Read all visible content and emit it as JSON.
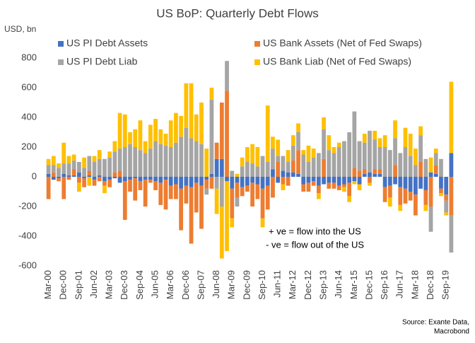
{
  "chart_data": {
    "type": "stacked_bar",
    "title": "US BoP: Quarterly Debt Flows",
    "y_label": "USD, bn",
    "annotations": [
      "+ ve = flow into the US",
      "- ve = flow out of the US"
    ],
    "source": [
      "Source: Exante Data,",
      "Macrobond"
    ],
    "categories": [
      "Mar-00",
      null,
      null,
      "Dec-00",
      null,
      null,
      "Sep-01",
      null,
      null,
      "Jun-02",
      null,
      null,
      "Mar-03",
      null,
      null,
      "Dec-03",
      null,
      null,
      "Sep-04",
      null,
      null,
      "Jun-05",
      null,
      null,
      "Mar-06",
      null,
      null,
      "Dec-06",
      null,
      null,
      "Sep-07",
      null,
      null,
      "Jun-08",
      null,
      null,
      "Mar-09",
      null,
      null,
      "Dec-09",
      null,
      null,
      "Sep-10",
      null,
      null,
      "Jun-11",
      null,
      null,
      "Mar-12",
      null,
      null,
      "Dec-12",
      null,
      null,
      "Sep-13",
      null,
      null,
      "Jun-14",
      null,
      null,
      "Mar-15",
      null,
      null,
      "Dec-15",
      null,
      null,
      "Sep-16",
      null,
      null,
      "Jun-17",
      null,
      null,
      "Mar-18",
      null,
      null,
      "Dec-18",
      null,
      null,
      "Sep-19",
      null
    ],
    "series": [
      {
        "name": "US PI Debt Assets",
        "color": "#4472c4",
        "values": [
          20,
          -20,
          -10,
          20,
          10,
          10,
          30,
          -10,
          10,
          -20,
          10,
          -30,
          -20,
          -10,
          -40,
          -30,
          -20,
          -10,
          -30,
          -20,
          -20,
          -30,
          -40,
          -20,
          -60,
          -50,
          -80,
          -60,
          -70,
          -40,
          -60,
          -20,
          20,
          120,
          120,
          -30,
          -80,
          -40,
          -70,
          -60,
          -40,
          -50,
          -80,
          -60,
          50,
          -40,
          40,
          30,
          30,
          20,
          -50,
          -40,
          -30,
          -60,
          -50,
          -40,
          -40,
          -60,
          -50,
          -40,
          -30,
          -50,
          20,
          30,
          20,
          20,
          -70,
          -60,
          -50,
          -70,
          -80,
          -100,
          -120,
          -80,
          -90,
          30,
          20,
          -80,
          -120,
          160
        ]
      },
      {
        "name": "US Bank Assets (Net of Fed Swaps)",
        "color": "#ed7d31",
        "values": [
          -150,
          30,
          -20,
          -150,
          -20,
          40,
          -40,
          -60,
          30,
          -40,
          -30,
          -30,
          -50,
          30,
          40,
          -260,
          -80,
          -150,
          -60,
          -180,
          -20,
          -60,
          -150,
          -200,
          -90,
          -100,
          -280,
          -120,
          -380,
          -200,
          -290,
          -60,
          -80,
          110,
          380,
          580,
          -200,
          -100,
          -60,
          -40,
          -160,
          -100,
          -200,
          -160,
          -140,
          100,
          -50,
          -60,
          80,
          160,
          -50,
          -60,
          -30,
          -50,
          120,
          -40,
          -40,
          -30,
          -20,
          -90,
          60,
          40,
          30,
          -40,
          30,
          30,
          -100,
          -80,
          80,
          -120,
          -100,
          -60,
          -140,
          100,
          -100,
          -200,
          60,
          -30,
          -40,
          -260
        ]
      },
      {
        "name": "US PI Debt Liab",
        "color": "#a5a5a5",
        "values": [
          60,
          50,
          60,
          70,
          80,
          60,
          70,
          60,
          100,
          100,
          110,
          120,
          130,
          140,
          150,
          200,
          220,
          200,
          180,
          160,
          190,
          240,
          220,
          210,
          200,
          230,
          270,
          330,
          260,
          240,
          220,
          -40,
          500,
          -80,
          -200,
          200,
          40,
          -60,
          70,
          100,
          90,
          70,
          140,
          100,
          140,
          40,
          100,
          70,
          100,
          120,
          150,
          100,
          130,
          160,
          200,
          180,
          160,
          200,
          240,
          300,
          380,
          200,
          180,
          280,
          200,
          150,
          200,
          180,
          180,
          160,
          200,
          140,
          80,
          180,
          120,
          -170,
          80,
          120,
          -80,
          -250
        ]
      },
      {
        "name": "US Bank Liab (Net of Fed Swaps)",
        "color": "#ffc000",
        "values": [
          40,
          60,
          30,
          140,
          50,
          40,
          -60,
          70,
          -60,
          40,
          60,
          -50,
          40,
          70,
          240,
          220,
          80,
          120,
          200,
          80,
          160,
          150,
          100,
          80,
          180,
          200,
          140,
          300,
          370,
          180,
          280,
          190,
          80,
          -170,
          -350,
          -470,
          -60,
          20,
          60,
          100,
          130,
          130,
          -60,
          380,
          80,
          110,
          -40,
          80,
          70,
          60,
          30,
          110,
          60,
          -40,
          80,
          100,
          40,
          30,
          -30,
          -40,
          -20,
          -40,
          60,
          -20,
          60,
          60,
          80,
          -60,
          120,
          -40,
          130,
          150,
          110,
          60,
          -40,
          100,
          30,
          -20,
          -20,
          480
        ]
      }
    ],
    "ylim": [
      -600,
      800
    ],
    "yticks": [
      -600,
      -400,
      -200,
      0,
      200,
      400,
      600,
      800
    ]
  }
}
